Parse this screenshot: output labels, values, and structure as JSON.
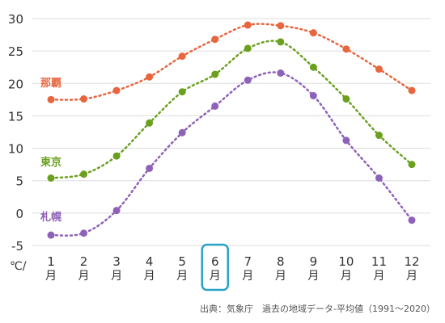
{
  "chart_data": {
    "type": "line",
    "categories": [
      "1",
      "2",
      "3",
      "4",
      "5",
      "6",
      "7",
      "8",
      "9",
      "10",
      "11",
      "12"
    ],
    "month_suffix": "月",
    "y_unit": "℃/",
    "ylim": [
      -5,
      30
    ],
    "yticks": [
      -5,
      0,
      5,
      10,
      15,
      20,
      25,
      30
    ],
    "grid": "horizontal",
    "highlight_category": "6",
    "series": [
      {
        "name": "那覇",
        "color": "#e8663e",
        "values": [
          17.5,
          17.6,
          18.9,
          21.0,
          24.2,
          26.8,
          29.0,
          28.9,
          27.8,
          25.3,
          22.2,
          18.9
        ]
      },
      {
        "name": "東京",
        "color": "#6ba01f",
        "values": [
          5.4,
          6.0,
          8.8,
          13.9,
          18.7,
          21.4,
          25.4,
          26.4,
          22.5,
          17.6,
          12.0,
          7.5
        ]
      },
      {
        "name": "札幌",
        "color": "#8e62b8",
        "values": [
          -3.4,
          -3.1,
          0.4,
          6.9,
          12.4,
          16.5,
          20.5,
          21.6,
          18.1,
          11.2,
          5.4,
          -1.1
        ]
      }
    ],
    "colors": {
      "highlight": "#2aa3c8",
      "grid": "#dddddd",
      "text": "#333333"
    }
  },
  "source": "出典：気象庁　過去の地域データ-平均値（1991～2020）"
}
